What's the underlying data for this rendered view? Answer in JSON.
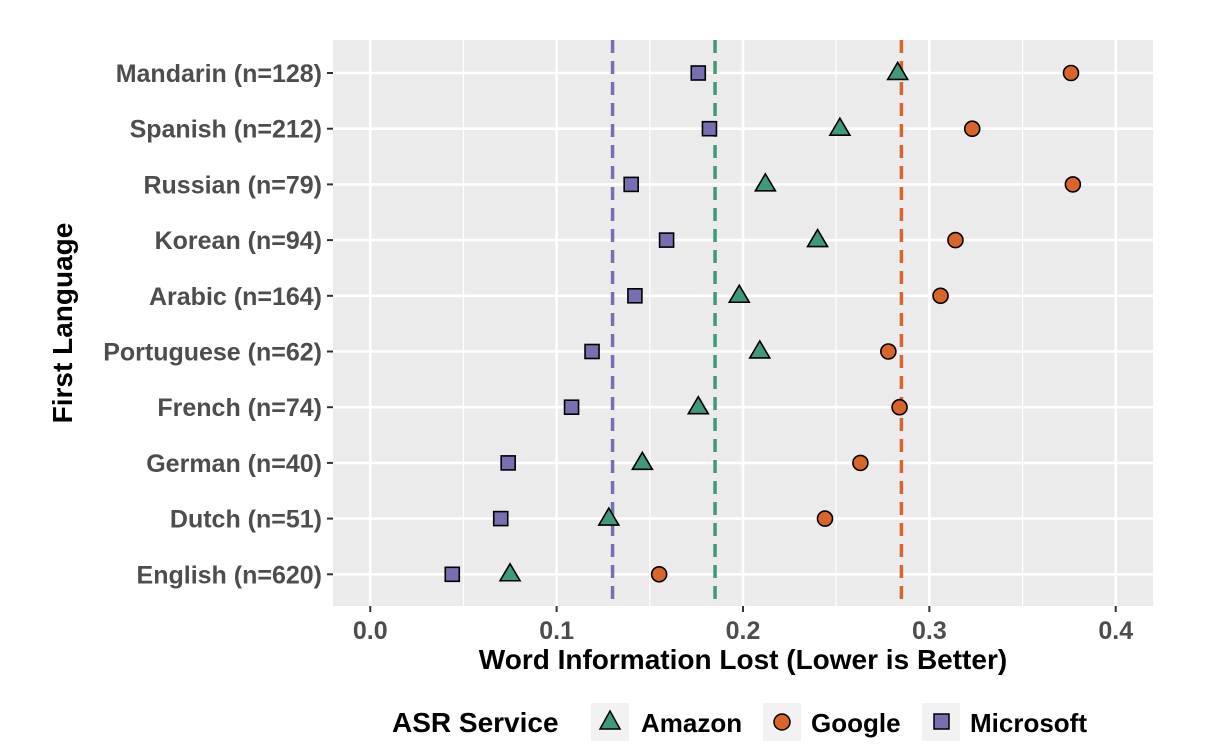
{
  "chart_data": {
    "type": "scatter",
    "title": "",
    "xlabel": "Word Information Lost (Lower is Better)",
    "ylabel": "First Language",
    "xlim": [
      -0.02,
      0.42
    ],
    "x_ticks": [
      0.0,
      0.1,
      0.2,
      0.3,
      0.4
    ],
    "x_tick_labels": [
      "0.0",
      "0.1",
      "0.2",
      "0.3",
      "0.4"
    ],
    "grid": true,
    "categories": [
      "Mandarin (n=128)",
      "Spanish (n=212)",
      "Russian (n=79)",
      "Korean (n=94)",
      "Arabic (n=164)",
      "Portuguese (n=62)",
      "French (n=74)",
      "German (n=40)",
      "Dutch (n=51)",
      "English (n=620)"
    ],
    "series": [
      {
        "name": "Amazon",
        "marker": "triangle",
        "color": "#3f9a7a",
        "values": [
          0.283,
          0.252,
          0.212,
          0.24,
          0.198,
          0.209,
          0.176,
          0.146,
          0.128,
          0.075
        ],
        "mean_line": 0.185
      },
      {
        "name": "Google",
        "marker": "circle",
        "color": "#d9652a",
        "values": [
          0.376,
          0.323,
          0.377,
          0.314,
          0.306,
          0.278,
          0.284,
          0.263,
          0.244,
          0.155
        ],
        "mean_line": 0.285
      },
      {
        "name": "Microsoft",
        "marker": "square",
        "color": "#7670b3",
        "values": [
          0.176,
          0.182,
          0.14,
          0.159,
          0.142,
          0.119,
          0.108,
          0.074,
          0.07,
          0.044
        ],
        "mean_line": 0.13
      }
    ],
    "legend": {
      "title": "ASR Service",
      "position": "bottom",
      "entries": [
        "Amazon",
        "Google",
        "Microsoft"
      ]
    },
    "colors": {
      "panel": "#ebebeb",
      "grid": "#ffffff",
      "marker_stroke": "#000000"
    }
  }
}
